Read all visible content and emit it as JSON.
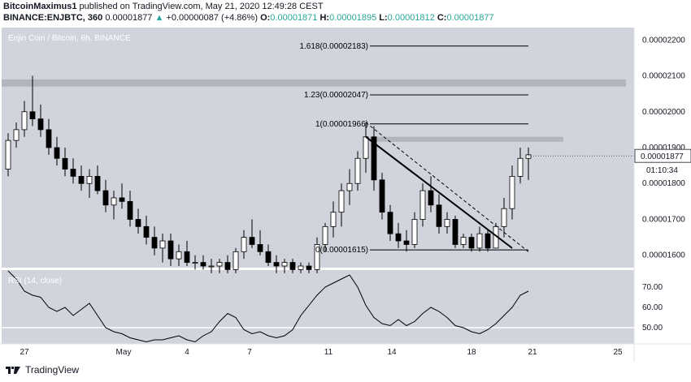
{
  "header": {
    "publisher": "BitcoinMaximus1",
    "published_text": "published on TradingView.com, May 21, 2020 12:49:28 CEST",
    "symbol": "BINANCE:ENJBTC, 360",
    "last": "0.00001877",
    "change": "+0.00000087 (+4.86%)",
    "o_label": "O:",
    "o": "0.00001871",
    "h_label": "H:",
    "h": "0.00001895",
    "l_label": "L:",
    "l": "0.00001812",
    "c_label": "C:",
    "c": "0.00001877"
  },
  "watermark": "TradingView",
  "colors": {
    "background": "#d1d4dc",
    "candle_up": "#ffffff",
    "candle_down": "#000000",
    "zone": "#b2b5be"
  },
  "chart_data": [
    {
      "type": "candlestick",
      "title": "Enjin Coin / Bitcoin, 6h, BINANCE",
      "ylim": [
        1.57e-05,
        2.23e-05
      ],
      "y_ticks": [
        "0.00001600",
        "0.00001700",
        "0.00001800",
        "0.00001900",
        "0.00002000",
        "0.00002100",
        "0.00002200"
      ],
      "x_ticks": [
        "27",
        "May",
        "4",
        "7",
        "11",
        "14",
        "18",
        "21",
        "25"
      ],
      "current_price_label": "0.00001877",
      "countdown": "01:10:34",
      "fib_levels": [
        {
          "label": "1.618(0.00002183)",
          "value": 2.183e-05
        },
        {
          "label": "1.23(0.00002047)",
          "value": 2.047e-05
        },
        {
          "label": "1(0.00001966)",
          "value": 1.966e-05
        },
        {
          "label": "0(0.00001615)",
          "value": 1.615e-05
        }
      ],
      "zones": [
        [
          2.07e-05,
          2.09e-05
        ],
        [
          1.92e-05,
          1.93e-05
        ]
      ],
      "ohlc": [
        [
          1.84e-05,
          1.94e-05,
          1.82e-05,
          1.92e-05
        ],
        [
          1.92e-05,
          1.97e-05,
          1.9e-05,
          1.95e-05
        ],
        [
          1.95e-05,
          2.03e-05,
          1.93e-05,
          2e-05
        ],
        [
          2e-05,
          2.1e-05,
          1.96e-05,
          1.98e-05
        ],
        [
          1.98e-05,
          2.02e-05,
          1.93e-05,
          1.95e-05
        ],
        [
          1.95e-05,
          1.98e-05,
          1.88e-05,
          1.9e-05
        ],
        [
          1.9e-05,
          1.93e-05,
          1.85e-05,
          1.87e-05
        ],
        [
          1.87e-05,
          1.9e-05,
          1.82e-05,
          1.84e-05
        ],
        [
          1.84e-05,
          1.87e-05,
          1.8e-05,
          1.82e-05
        ],
        [
          1.82e-05,
          1.85e-05,
          1.78e-05,
          1.8e-05
        ],
        [
          1.8e-05,
          1.84e-05,
          1.76e-05,
          1.82e-05
        ],
        [
          1.82e-05,
          1.85e-05,
          1.77e-05,
          1.78e-05
        ],
        [
          1.78e-05,
          1.81e-05,
          1.72e-05,
          1.74e-05
        ],
        [
          1.74e-05,
          1.78e-05,
          1.7e-05,
          1.76e-05
        ],
        [
          1.76e-05,
          1.8e-05,
          1.73e-05,
          1.75e-05
        ],
        [
          1.75e-05,
          1.78e-05,
          1.68e-05,
          1.7e-05
        ],
        [
          1.7e-05,
          1.73e-05,
          1.66e-05,
          1.68e-05
        ],
        [
          1.68e-05,
          1.71e-05,
          1.63e-05,
          1.65e-05
        ],
        [
          1.65e-05,
          1.68e-05,
          1.6e-05,
          1.62e-05
        ],
        [
          1.62e-05,
          1.66e-05,
          1.58e-05,
          1.64e-05
        ],
        [
          1.64e-05,
          1.66e-05,
          1.57e-05,
          1.59e-05
        ],
        [
          1.59e-05,
          1.63e-05,
          1.57e-05,
          1.61e-05
        ],
        [
          1.61e-05,
          1.64e-05,
          1.57e-05,
          1.58e-05
        ],
        [
          1.58e-05,
          1.6e-05,
          1.56e-05,
          1.58e-05
        ],
        [
          1.58e-05,
          1.6e-05,
          1.56e-05,
          1.57e-05
        ],
        [
          1.57e-05,
          1.59e-05,
          1.55e-05,
          1.57e-05
        ],
        [
          1.57e-05,
          1.59e-05,
          1.55e-05,
          1.58e-05
        ],
        [
          1.58e-05,
          1.6e-05,
          1.55e-05,
          1.56e-05
        ],
        [
          1.56e-05,
          1.62e-05,
          1.55e-05,
          1.61e-05
        ],
        [
          1.61e-05,
          1.67e-05,
          1.59e-05,
          1.65e-05
        ],
        [
          1.65e-05,
          1.7e-05,
          1.62e-05,
          1.63e-05
        ],
        [
          1.63e-05,
          1.67e-05,
          1.6e-05,
          1.61e-05
        ],
        [
          1.61e-05,
          1.63e-05,
          1.57e-05,
          1.58e-05
        ],
        [
          1.58e-05,
          1.6e-05,
          1.55e-05,
          1.57e-05
        ],
        [
          1.57e-05,
          1.59e-05,
          1.55e-05,
          1.58e-05
        ],
        [
          1.58e-05,
          1.59e-05,
          1.55e-05,
          1.56e-05
        ],
        [
          1.56e-05,
          1.58e-05,
          1.55e-05,
          1.57e-05
        ],
        [
          1.57e-05,
          1.58e-05,
          1.55e-05,
          1.56e-05
        ],
        [
          1.56e-05,
          1.65e-05,
          1.55e-05,
          1.63e-05
        ],
        [
          1.63e-05,
          1.69e-05,
          1.61e-05,
          1.68e-05
        ],
        [
          1.68e-05,
          1.75e-05,
          1.65e-05,
          1.72e-05
        ],
        [
          1.72e-05,
          1.8e-05,
          1.68e-05,
          1.78e-05
        ],
        [
          1.78e-05,
          1.84e-05,
          1.74e-05,
          1.8e-05
        ],
        [
          1.8e-05,
          1.89e-05,
          1.78e-05,
          1.87e-05
        ],
        [
          1.87e-05,
          1.97e-05,
          1.83e-05,
          1.93e-05
        ],
        [
          1.93e-05,
          1.96e-05,
          1.78e-05,
          1.81e-05
        ],
        [
          1.81e-05,
          1.83e-05,
          1.7e-05,
          1.72e-05
        ],
        [
          1.72e-05,
          1.74e-05,
          1.64e-05,
          1.66e-05
        ],
        [
          1.66e-05,
          1.69e-05,
          1.62e-05,
          1.64e-05
        ],
        [
          1.64e-05,
          1.67e-05,
          1.61e-05,
          1.63e-05
        ],
        [
          1.63e-05,
          1.72e-05,
          1.62e-05,
          1.7e-05
        ],
        [
          1.7e-05,
          1.8e-05,
          1.68e-05,
          1.78e-05
        ],
        [
          1.78e-05,
          1.82e-05,
          1.72e-05,
          1.74e-05
        ],
        [
          1.74e-05,
          1.77e-05,
          1.66e-05,
          1.68e-05
        ],
        [
          1.68e-05,
          1.72e-05,
          1.66e-05,
          1.7e-05
        ],
        [
          1.7e-05,
          1.71e-05,
          1.62e-05,
          1.63e-05
        ],
        [
          1.63e-05,
          1.66e-05,
          1.62e-05,
          1.65e-05
        ],
        [
          1.65e-05,
          1.66e-05,
          1.61e-05,
          1.62e-05
        ],
        [
          1.62e-05,
          1.68e-05,
          1.61e-05,
          1.66e-05
        ],
        [
          1.66e-05,
          1.67e-05,
          1.61e-05,
          1.62e-05
        ],
        [
          1.62e-05,
          1.69e-05,
          1.62e-05,
          1.68e-05
        ],
        [
          1.68e-05,
          1.76e-05,
          1.65e-05,
          1.73e-05
        ],
        [
          1.73e-05,
          1.85e-05,
          1.7e-05,
          1.82e-05
        ],
        [
          1.82e-05,
          1.9e-05,
          1.8e-05,
          1.87e-05
        ],
        [
          1.87e-05,
          1.9e-05,
          1.81e-05,
          1.88e-05
        ]
      ]
    },
    {
      "type": "line",
      "title": "RSI (14, close)",
      "y_ticks": [
        "70.00",
        "60.00",
        "50.00"
      ],
      "values": [
        82,
        74,
        68,
        66,
        65,
        60,
        58,
        60,
        56,
        59,
        62,
        56,
        50,
        48,
        47,
        45,
        44,
        43,
        44,
        44,
        45,
        46,
        44,
        43,
        46,
        48,
        53,
        57,
        55,
        49,
        47,
        48,
        46,
        45,
        46,
        49,
        56,
        61,
        66,
        70,
        72,
        74,
        76,
        70,
        61,
        55,
        52,
        51,
        54,
        51,
        53,
        57,
        60,
        58,
        55,
        51,
        50,
        48,
        47,
        49,
        52,
        56,
        60,
        66,
        68
      ]
    }
  ]
}
